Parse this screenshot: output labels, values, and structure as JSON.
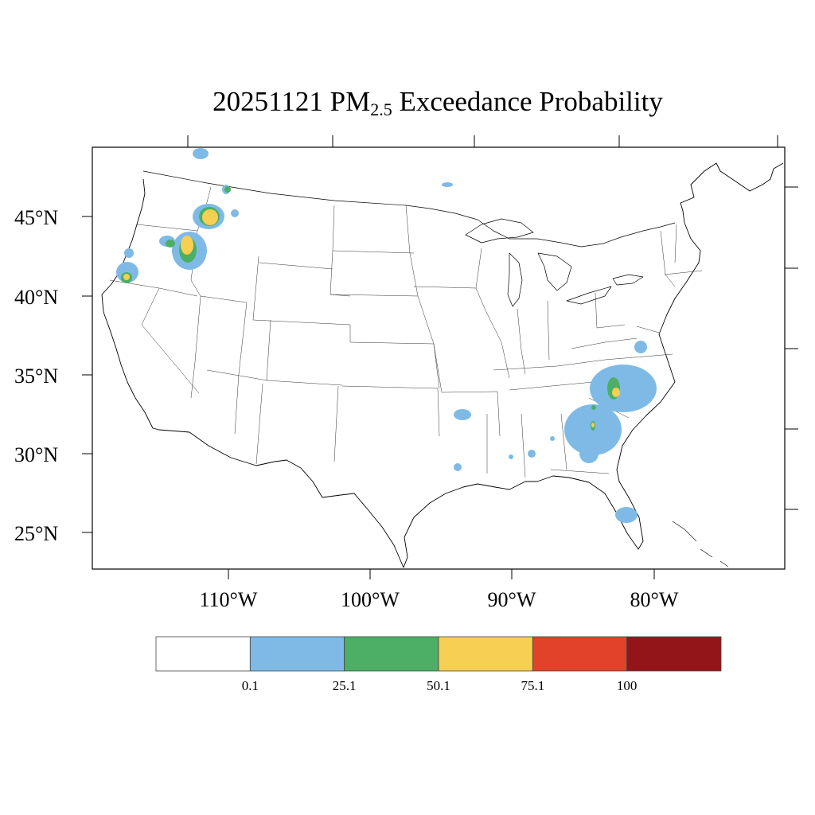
{
  "title": {
    "date": "20251121",
    "pollutant_main": "PM",
    "pollutant_sub": "2.5",
    "suffix": "Exceedance Probability"
  },
  "map": {
    "region": "Contiguous United States",
    "lat_labels": [
      "45°N",
      "40°N",
      "35°N",
      "30°N",
      "25°N"
    ],
    "lon_labels": [
      "110°W",
      "100°W",
      "90°W",
      "80°W"
    ],
    "probability_areas": [
      {
        "region": "western Montana",
        "max_class": "50.1–75.1"
      },
      {
        "region": "central Idaho",
        "max_class": "50.1–75.1"
      },
      {
        "region": "southern Oregon / northern California",
        "max_class": "50.1–75.1"
      },
      {
        "region": "Carolinas / Georgia",
        "max_class": "50.1–75.1"
      },
      {
        "region": "southern Florida",
        "max_class": "0.1–25.1"
      },
      {
        "region": "northern Louisiana",
        "max_class": "0.1–25.1"
      }
    ]
  },
  "colorbar": {
    "colors": [
      "#ffffff",
      "#7fbae6",
      "#4caf65",
      "#f7cf52",
      "#e2422a",
      "#941519"
    ],
    "labels": [
      "0.1",
      "25.1",
      "50.1",
      "75.1",
      "100"
    ]
  }
}
